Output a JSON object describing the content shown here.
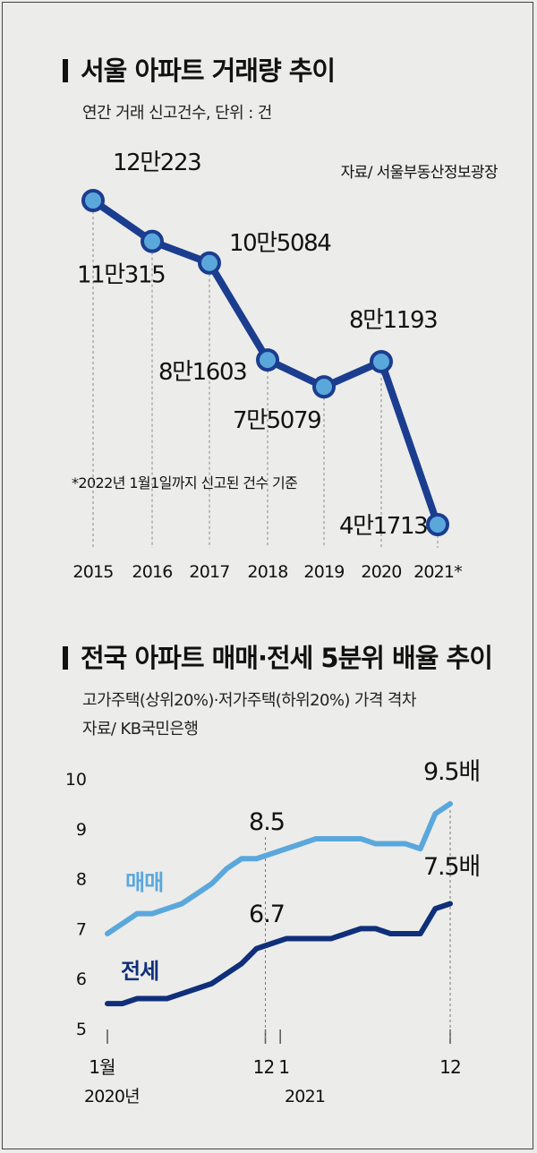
{
  "chart_data": [
    {
      "type": "line",
      "title": "서울 아파트 거래량 추이",
      "subtitle": "연간 거래 신고건수, 단위 : 건",
      "source": "자료/ 서울부동산정보광장",
      "footnote": "*2022년 1월1일까지 신고된 건수 기준",
      "x": [
        "2015",
        "2016",
        "2017",
        "2018",
        "2019",
        "2020",
        "2021*"
      ],
      "values": [
        120223,
        110315,
        105084,
        81603,
        75079,
        81193,
        41713
      ],
      "data_labels": [
        "12만223",
        "11만315",
        "10만5084",
        "8만1603",
        "7만5079",
        "8만1193",
        "4만1713"
      ],
      "grid": "vertical dashed lines at each year",
      "color": "#1b3d8f"
    },
    {
      "type": "line",
      "title": "전국 아파트 매매·전세 5분위 배율 추이",
      "subtitle": "고가주택(상위20%)·저가주택(하위20%) 가격 격차",
      "source": "자료/ KB국민은행",
      "x_ticks": [
        "1월",
        "12",
        "1",
        "12"
      ],
      "x_year_labels": [
        "2020년",
        "2021"
      ],
      "y_ticks": [
        "10",
        "9",
        "8",
        "7",
        "6",
        "5"
      ],
      "ylim": [
        5,
        10
      ],
      "series": [
        {
          "name": "매매",
          "color": "#5aa7dc",
          "values": [
            6.9,
            7.1,
            7.3,
            7.3,
            7.4,
            7.5,
            7.7,
            7.9,
            8.2,
            8.4,
            8.4,
            8.5,
            8.6,
            8.7,
            8.8,
            8.8,
            8.8,
            8.8,
            8.7,
            8.7,
            8.7,
            8.6,
            9.3,
            9.5
          ],
          "annotations": [
            "8.5",
            "9.5배"
          ]
        },
        {
          "name": "전세",
          "color": "#0f2f7a",
          "values": [
            5.5,
            5.5,
            5.6,
            5.6,
            5.6,
            5.7,
            5.8,
            5.9,
            6.1,
            6.3,
            6.6,
            6.7,
            6.8,
            6.8,
            6.8,
            6.8,
            6.9,
            7.0,
            7.0,
            6.9,
            6.9,
            6.9,
            7.4,
            7.5
          ],
          "annotations": [
            "6.7",
            "7.5배"
          ]
        }
      ]
    }
  ]
}
